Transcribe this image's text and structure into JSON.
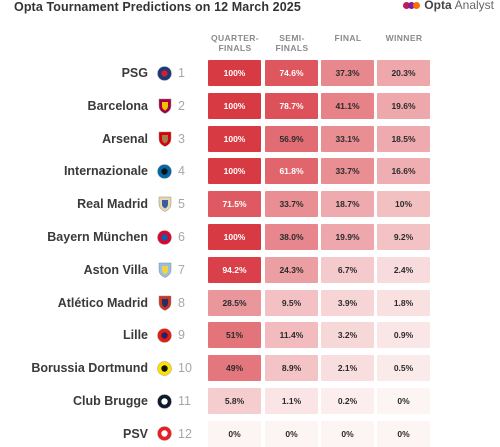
{
  "header": {
    "title": "Opta Tournament Predictions on 12 March 2025",
    "brand_main": "Opta",
    "brand_sub": "Analyst"
  },
  "chart_data": {
    "type": "table",
    "columns": [
      {
        "label_line1": "QUARTER-",
        "label_line2": "FINALS"
      },
      {
        "label_line1": "SEMI-",
        "label_line2": "FINALS"
      },
      {
        "label_line1": "FINAL",
        "label_line2": ""
      },
      {
        "label_line1": "WINNER",
        "label_line2": ""
      }
    ],
    "rows": [
      {
        "team": "PSG",
        "seed": "1",
        "crest": {
          "shape": "circle",
          "color": "#1b3a7a",
          "accent": "#d11f2f"
        },
        "values": [
          "100%",
          "74.6%",
          "37.3%",
          "20.3%"
        ],
        "nums": [
          100,
          74.6,
          37.3,
          20.3
        ]
      },
      {
        "team": "Barcelona",
        "seed": "2",
        "crest": {
          "shape": "shield",
          "color": "#a50044",
          "accent": "#f2c200"
        },
        "values": [
          "100%",
          "78.7%",
          "41.1%",
          "19.6%"
        ],
        "nums": [
          100,
          78.7,
          41.1,
          19.6
        ]
      },
      {
        "team": "Arsenal",
        "seed": "3",
        "crest": {
          "shape": "shield",
          "color": "#db0007",
          "accent": "#9c824a"
        },
        "values": [
          "100%",
          "56.9%",
          "33.1%",
          "18.5%"
        ],
        "nums": [
          100,
          56.9,
          33.1,
          18.5
        ]
      },
      {
        "team": "Internazionale",
        "seed": "4",
        "crest": {
          "shape": "circle",
          "color": "#0068a8",
          "accent": "#111111"
        },
        "values": [
          "100%",
          "61.8%",
          "33.7%",
          "16.6%"
        ],
        "nums": [
          100,
          61.8,
          33.7,
          16.6
        ]
      },
      {
        "team": "Real Madrid",
        "seed": "5",
        "crest": {
          "shape": "shield",
          "color": "#e8d9a8",
          "accent": "#3b5ba9"
        },
        "values": [
          "71.5%",
          "33.7%",
          "18.7%",
          "10%"
        ],
        "nums": [
          71.5,
          33.7,
          18.7,
          10
        ]
      },
      {
        "team": "Bayern München",
        "seed": "6",
        "crest": {
          "shape": "circle",
          "color": "#dc052d",
          "accent": "#0066b2"
        },
        "values": [
          "100%",
          "38.0%",
          "19.9%",
          "9.2%"
        ],
        "nums": [
          100,
          38.0,
          19.9,
          9.2
        ]
      },
      {
        "team": "Aston Villa",
        "seed": "7",
        "crest": {
          "shape": "shield",
          "color": "#95bfe5",
          "accent": "#f7d23f"
        },
        "values": [
          "94.2%",
          "24.3%",
          "6.7%",
          "2.4%"
        ],
        "nums": [
          94.2,
          24.3,
          6.7,
          2.4
        ]
      },
      {
        "team": "Atlético Madrid",
        "seed": "8",
        "crest": {
          "shape": "shield",
          "color": "#cb3524",
          "accent": "#272e61"
        },
        "values": [
          "28.5%",
          "9.5%",
          "3.9%",
          "1.8%"
        ],
        "nums": [
          28.5,
          9.5,
          3.9,
          1.8
        ]
      },
      {
        "team": "Lille",
        "seed": "9",
        "crest": {
          "shape": "circle",
          "color": "#e01e13",
          "accent": "#24216a"
        },
        "values": [
          "51%",
          "11.4%",
          "3.2%",
          "0.9%"
        ],
        "nums": [
          51,
          11.4,
          3.2,
          0.9
        ]
      },
      {
        "team": "Borussia Dortmund",
        "seed": "10",
        "crest": {
          "shape": "circle",
          "color": "#fde100",
          "accent": "#111111"
        },
        "values": [
          "49%",
          "8.9%",
          "2.1%",
          "0.5%"
        ],
        "nums": [
          49,
          8.9,
          2.1,
          0.5
        ]
      },
      {
        "team": "Club Brugge",
        "seed": "11",
        "crest": {
          "shape": "circle",
          "color": "#0e1a2e",
          "accent": "#ffffff"
        },
        "values": [
          "5.8%",
          "1.1%",
          "0.2%",
          "0%"
        ],
        "nums": [
          5.8,
          1.1,
          0.2,
          0
        ]
      },
      {
        "team": "PSV",
        "seed": "12",
        "crest": {
          "shape": "circle",
          "color": "#ed1c24",
          "accent": "#ffffff"
        },
        "values": [
          "0%",
          "0%",
          "0%",
          "0%"
        ],
        "nums": [
          0,
          0,
          0,
          0
        ]
      }
    ]
  }
}
